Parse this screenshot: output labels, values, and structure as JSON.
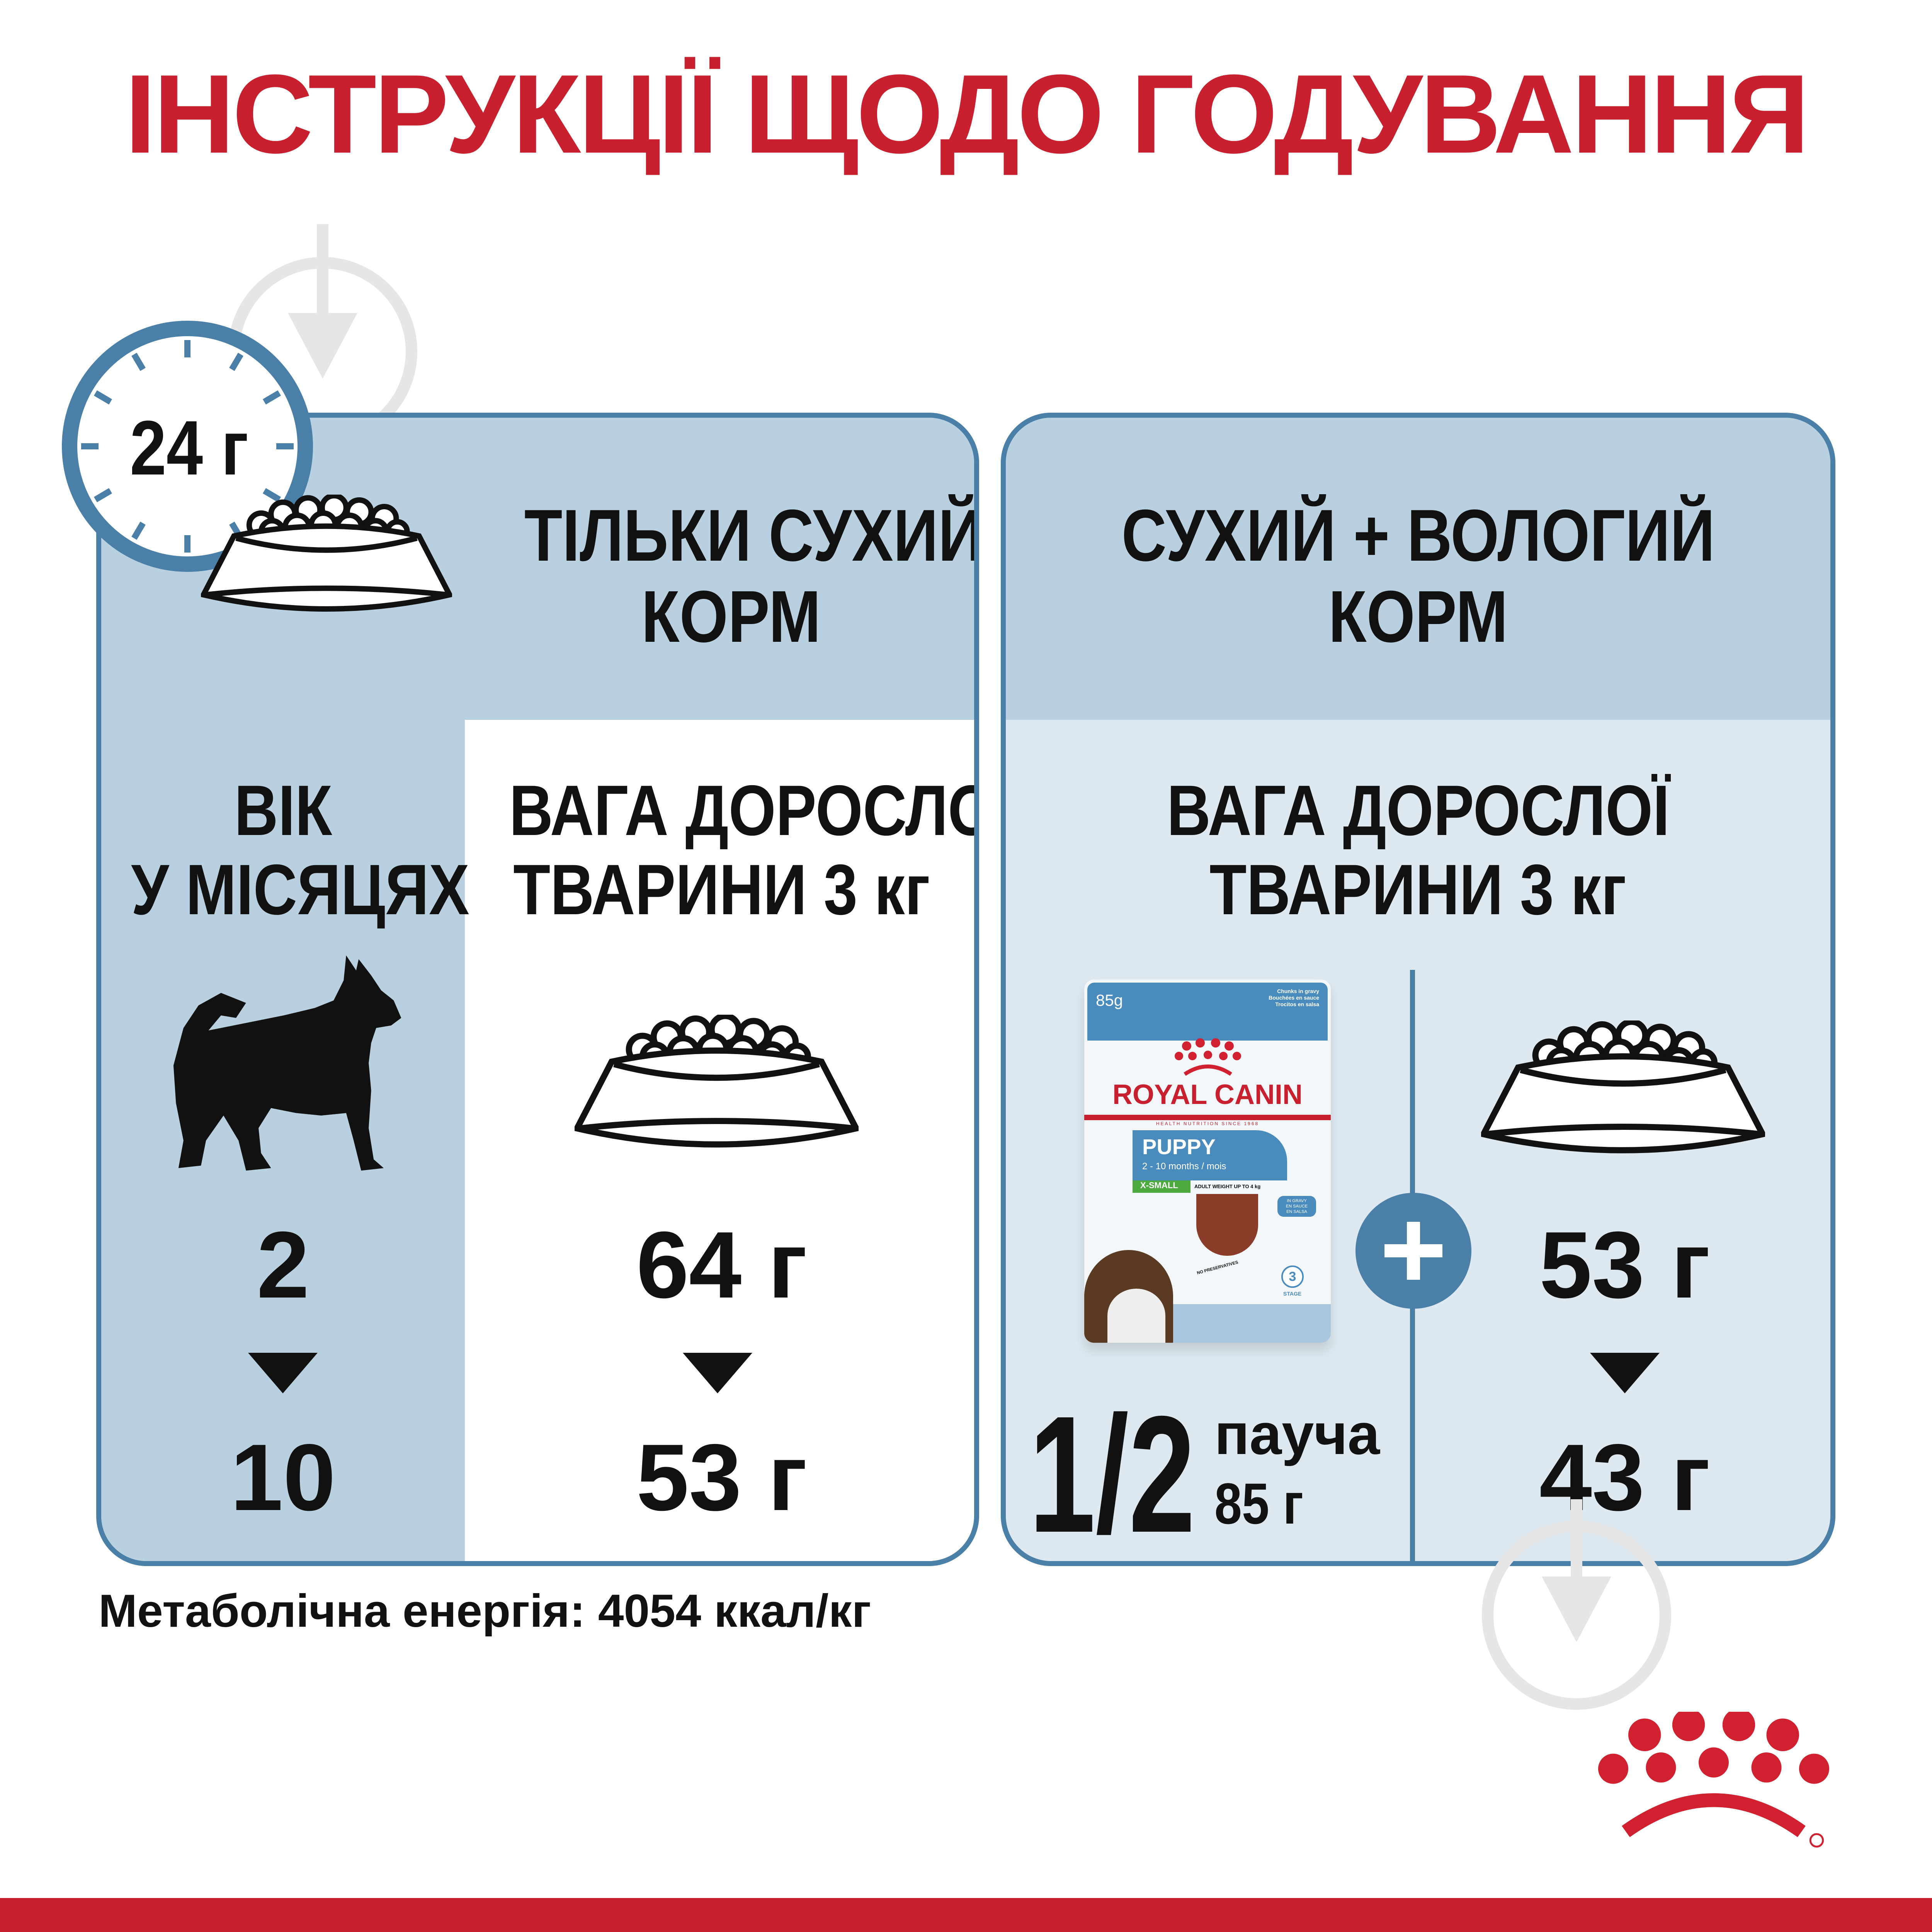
{
  "title": "ІНСТРУКЦІЇ ЩОДО ГОДУВАННЯ",
  "daily_amount_badge": "24 г",
  "dry_only": {
    "header_line1": "ТІЛЬКИ СУХИЙ",
    "header_line2": "КОРМ",
    "age_label_line1": "ВІК",
    "age_label_line2": "У МІСЯЦЯХ",
    "weight_label_line1": "ВАГА ДОРОСЛОЇ",
    "weight_label_line2": "ТВАРИНИ 3 кг",
    "age_from": "2",
    "age_to": "10",
    "amount_from": "64 г",
    "amount_to": "53 г"
  },
  "dry_wet": {
    "header_line1": "СУХИЙ + ВОЛОГИЙ",
    "header_line2": "КОРМ",
    "weight_label_line1": "ВАГА ДОРОСЛОЇ",
    "weight_label_line2": "ТВАРИНИ 3 кг",
    "pouch_fraction": "1/2",
    "pouch_unit": "пауча",
    "pouch_weight": "85 г",
    "dry_from": "53 г",
    "dry_to": "43 г"
  },
  "pouch": {
    "weight": "85g",
    "desc": [
      "Chunks in gravy",
      "Bouchées en sauce",
      "Trocitos en salsa"
    ],
    "brand": "ROYAL CANIN",
    "tagline": "HEALTH NUTRITION SINCE 1968",
    "product": "PUPPY",
    "age": "2 - 10 months / mois",
    "size": "X-SMALL",
    "adult_weight": "ADULT WEIGHT UP TO 4 kg",
    "gravy": [
      "IN GRAVY",
      "EN SAUCE",
      "EN SALSA"
    ],
    "no_preservatives": "NO PRESERVATIVES",
    "stage": "3",
    "stage_label": "STAGE"
  },
  "footer": "Метаболічна енергія: 4054 ккал/кг",
  "colors": {
    "red": "#c8202f",
    "blue": "#4a7fa8",
    "light_blue": "#b8d0df",
    "pale_blue": "#dde8f0"
  }
}
